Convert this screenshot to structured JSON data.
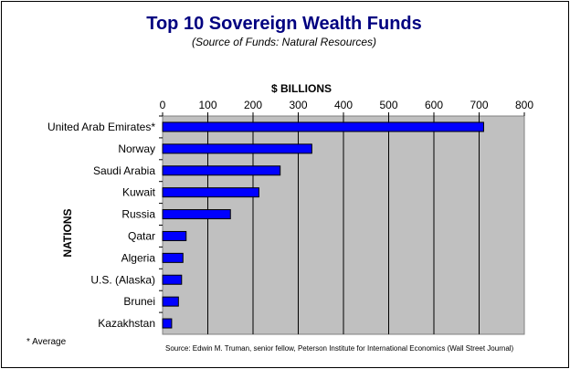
{
  "chart_data": {
    "type": "bar",
    "orientation": "horizontal",
    "title": "Top 10 Sovereign Wealth Funds",
    "subtitle": "(Source of Funds: Natural Resources)",
    "xlabel": "$ BILLIONS",
    "ylabel": "NATIONS",
    "xlim": [
      0,
      800
    ],
    "xticks": [
      0,
      100,
      200,
      300,
      400,
      500,
      600,
      700,
      800
    ],
    "categories": [
      "United Arab Emirates*",
      "Norway",
      "Saudi Arabia",
      "Kuwait",
      "Russia",
      "Qatar",
      "Algeria",
      "U.S. (Alaska)",
      "Brunei",
      "Kazakhstan"
    ],
    "values": [
      710,
      330,
      260,
      213,
      150,
      52,
      45,
      42,
      35,
      20
    ],
    "grid": true,
    "plot_background": "#c0c0c0",
    "bar_color": "#0000ff"
  },
  "footnote": "* Average",
  "source": "Source: Edwin M. Truman, senior fellow, Peterson Institute for International Economics (Wall Street Journal)"
}
